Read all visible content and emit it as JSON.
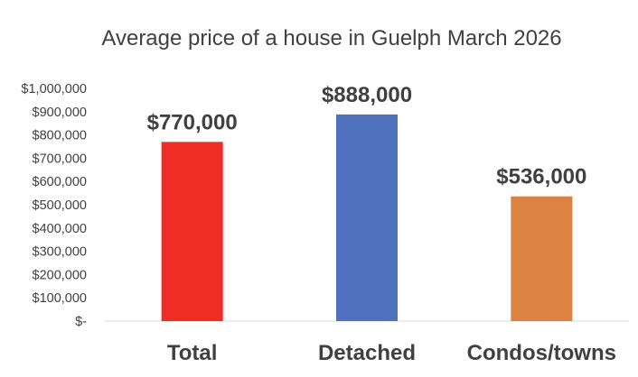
{
  "chart_data": {
    "type": "bar",
    "title": "Average price of a house in Guelph March 2026",
    "xlabel": "",
    "ylabel": "",
    "categories": [
      "Total",
      "Detached",
      "Condos/towns"
    ],
    "values": [
      770000,
      888000,
      536000
    ],
    "data_labels": [
      "$770,000",
      "$888,000",
      "$536,000"
    ],
    "colors": [
      "#ee2e24",
      "#4f71be",
      "#de8244"
    ],
    "ylim": [
      0,
      1000000
    ],
    "y_ticks": [
      0,
      100000,
      200000,
      300000,
      400000,
      500000,
      600000,
      700000,
      800000,
      900000,
      1000000
    ],
    "y_tick_labels": [
      "$-",
      "$100,000",
      "$200,000",
      "$300,000",
      "$400,000",
      "$500,000",
      "$600,000",
      "$700,000",
      "$800,000",
      "$900,000",
      "$1,000,000"
    ],
    "grid": false,
    "legend": "none"
  }
}
